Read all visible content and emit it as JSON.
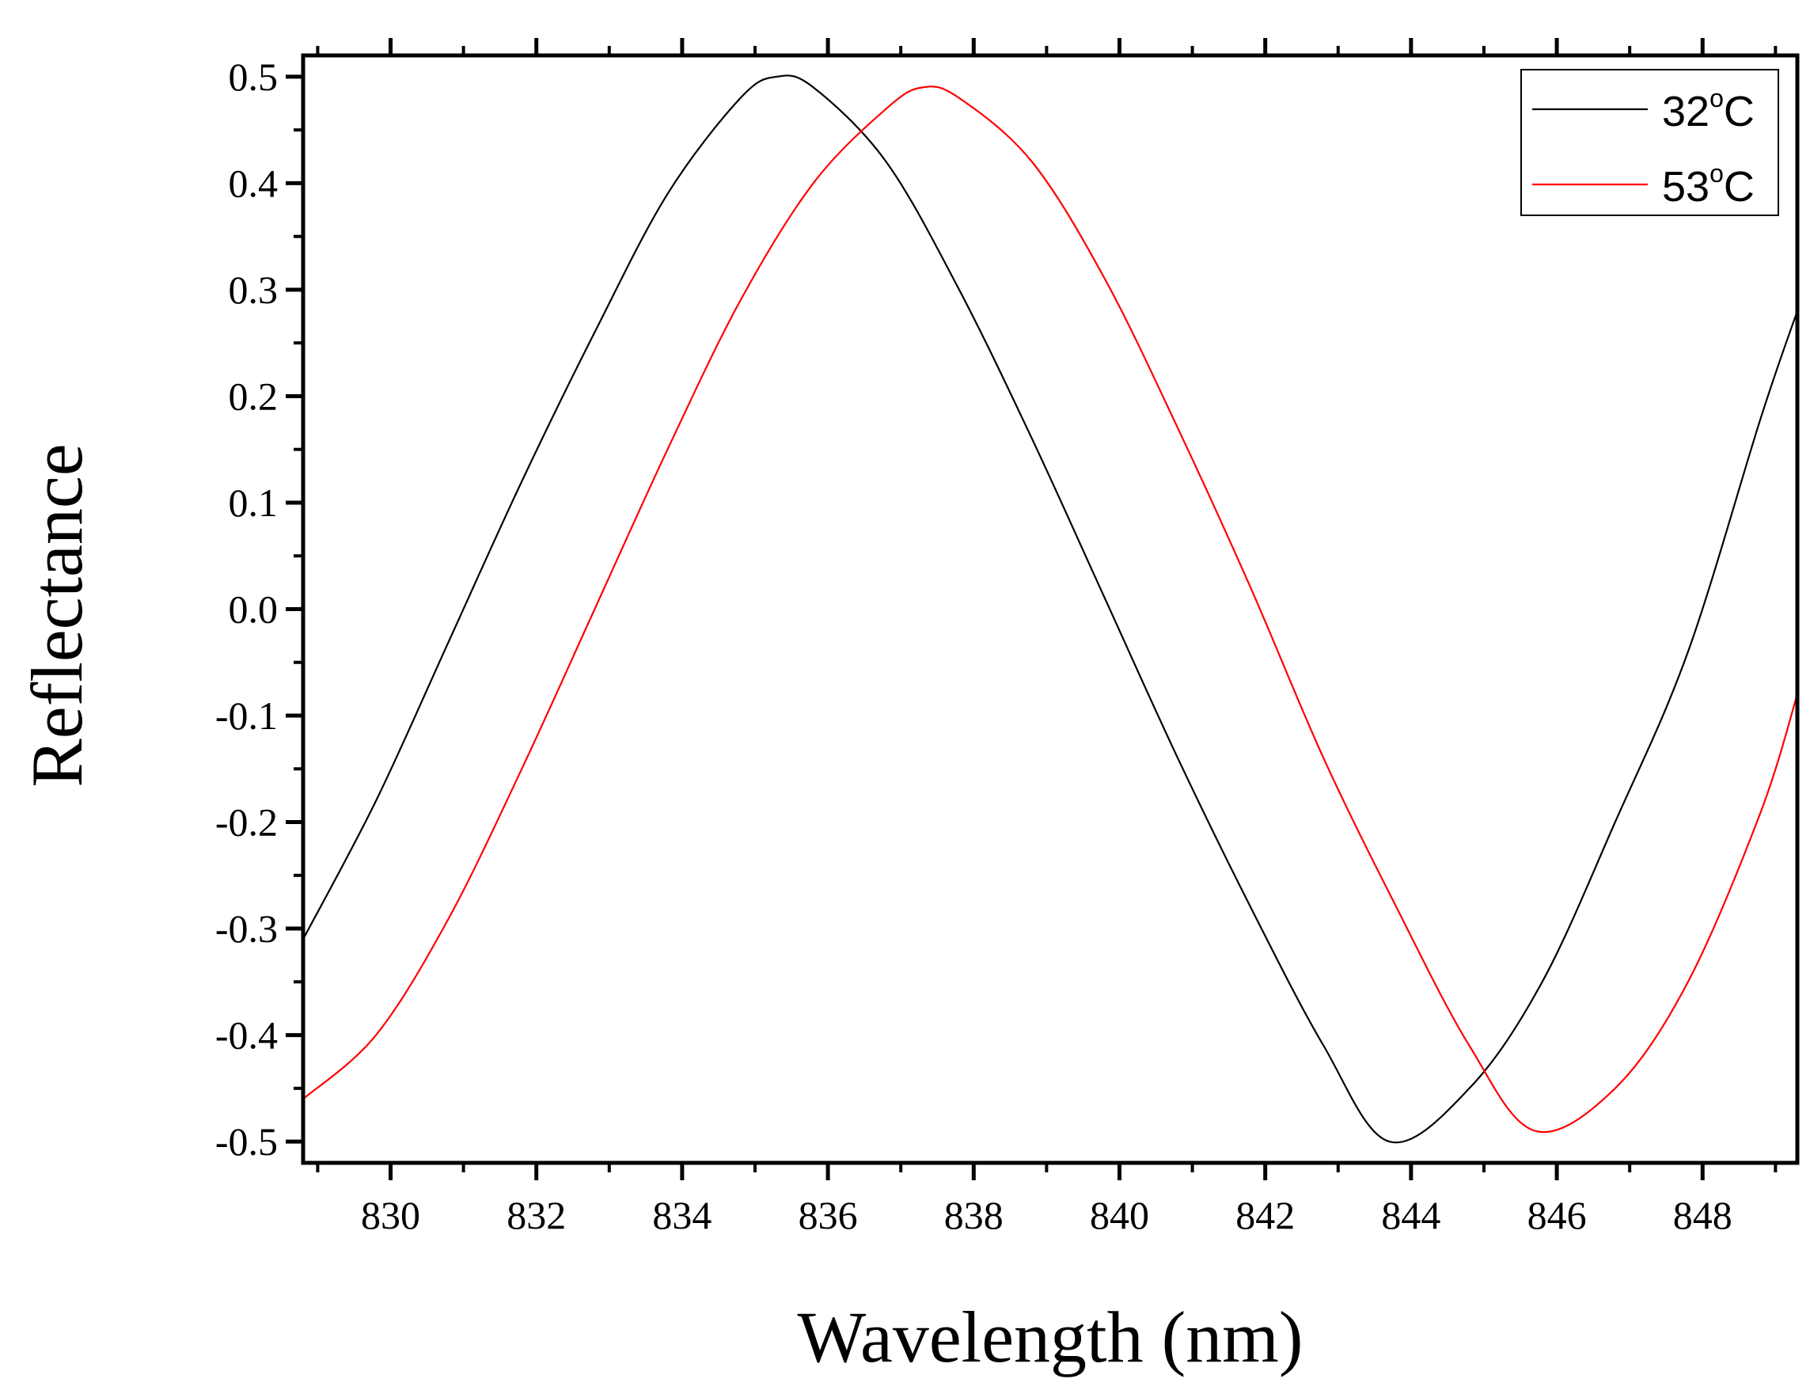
{
  "chart_data": {
    "type": "line",
    "title": "",
    "xlabel": "Wavelength (nm)",
    "ylabel": "Reflectance",
    "xlim": [
      828.8,
      849.3
    ],
    "ylim": [
      -0.52,
      0.52
    ],
    "x_ticks": [
      830,
      832,
      834,
      836,
      838,
      840,
      842,
      844,
      846,
      848
    ],
    "x_tick_labels": [
      "830",
      "832",
      "834",
      "836",
      "838",
      "840",
      "842",
      "844",
      "846",
      "848"
    ],
    "y_ticks": [
      -0.5,
      -0.4,
      -0.3,
      -0.2,
      -0.1,
      0.0,
      0.1,
      0.2,
      0.3,
      0.4,
      0.5
    ],
    "y_tick_labels": [
      "-0.5",
      "-0.4",
      "-0.3",
      "-0.2",
      "-0.1",
      "0.0",
      "0.1",
      "0.2",
      "0.3",
      "0.4",
      "0.5"
    ],
    "grid": false,
    "legend_position": "top-right",
    "series": [
      {
        "name": "32°C",
        "label_main": "32",
        "label_sup": "o",
        "label_unit": "C",
        "color": "#000000",
        "x": [
          828.8,
          829.8,
          830.8,
          831.8,
          832.8,
          833.8,
          834.8,
          835.3,
          835.8,
          836.8,
          837.8,
          838.8,
          839.8,
          840.8,
          841.8,
          842.8,
          843.7,
          844.8,
          845.8,
          846.8,
          847.8,
          848.8,
          849.3
        ],
        "y": [
          -0.31,
          -0.18,
          -0.03,
          0.12,
          0.26,
          0.39,
          0.48,
          0.5,
          0.49,
          0.42,
          0.3,
          0.16,
          0.01,
          -0.14,
          -0.28,
          -0.41,
          -0.5,
          -0.45,
          -0.35,
          -0.2,
          -0.04,
          0.18,
          0.28
        ]
      },
      {
        "name": "53°C",
        "label_main": "53",
        "label_sup": "o",
        "label_unit": "C",
        "color": "#ff0000",
        "x": [
          828.8,
          829.8,
          830.8,
          831.8,
          832.8,
          833.8,
          834.8,
          835.8,
          836.8,
          837.3,
          837.8,
          838.8,
          839.8,
          840.8,
          841.8,
          842.8,
          843.8,
          844.8,
          845.7,
          846.8,
          847.8,
          848.8,
          849.3
        ],
        "y": [
          -0.46,
          -0.4,
          -0.29,
          -0.15,
          0.0,
          0.15,
          0.29,
          0.4,
          0.47,
          0.49,
          0.48,
          0.42,
          0.31,
          0.17,
          0.02,
          -0.14,
          -0.28,
          -0.41,
          -0.49,
          -0.45,
          -0.35,
          -0.19,
          -0.08
        ]
      }
    ]
  }
}
